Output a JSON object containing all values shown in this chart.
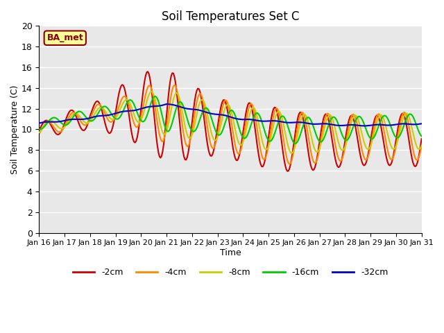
{
  "title": "Soil Temperatures Set C",
  "xlabel": "Time",
  "ylabel": "Soil Temperature (C)",
  "ylim": [
    0,
    20
  ],
  "yticks": [
    0,
    2,
    4,
    6,
    8,
    10,
    12,
    14,
    16,
    18,
    20
  ],
  "x_labels": [
    "Jan 16",
    "Jan 17",
    "Jan 18",
    "Jan 19",
    "Jan 20",
    "Jan 21",
    "Jan 22",
    "Jan 23",
    "Jan 24",
    "Jan 25",
    "Jan 26",
    "Jan 27",
    "Jan 28",
    "Jan 29",
    "Jan 30",
    "Jan 31"
  ],
  "colors": {
    "-2cm": "#cc0000",
    "-4cm": "#ff8800",
    "-8cm": "#cccc00",
    "-16cm": "#00cc00",
    "-32cm": "#0000cc"
  },
  "annotation_text": "BA_met",
  "annotation_bg": "#ffff99",
  "annotation_border": "#8b0000",
  "background_color": "#e8e8e8",
  "grid_color": "#ffffff",
  "n_points_per_day": 24,
  "n_days": 15
}
